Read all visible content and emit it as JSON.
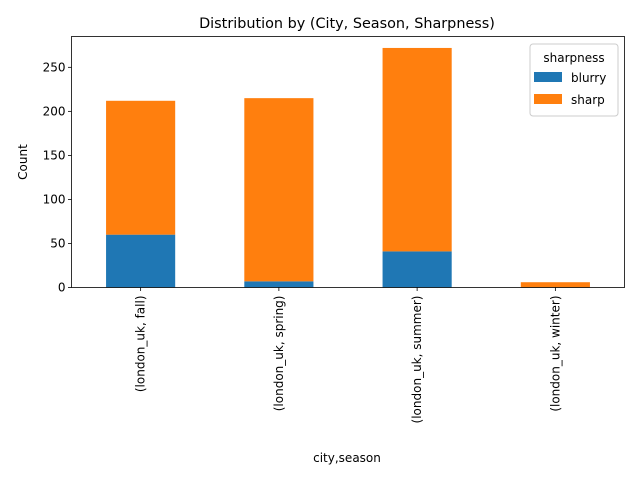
{
  "chart_data": {
    "type": "bar",
    "stacked": true,
    "title": "Distribution by (City, Season, Sharpness)",
    "xlabel": "city,season",
    "ylabel": "Count",
    "categories": [
      "(london_uk, fall)",
      "(london_uk, spring)",
      "(london_uk, summer)",
      "(london_uk, winter)"
    ],
    "series": [
      {
        "name": "blurry",
        "values": [
          60,
          7,
          41,
          0
        ],
        "color": "#1f77b4"
      },
      {
        "name": "sharp",
        "values": [
          152,
          208,
          231,
          6
        ],
        "color": "#ff7f0e"
      }
    ],
    "ylim": [
      0,
      285
    ],
    "yticks": [
      0,
      50,
      100,
      150,
      200,
      250
    ],
    "grid": false,
    "legend": {
      "title": "sharpness",
      "position": "top-right"
    }
  }
}
